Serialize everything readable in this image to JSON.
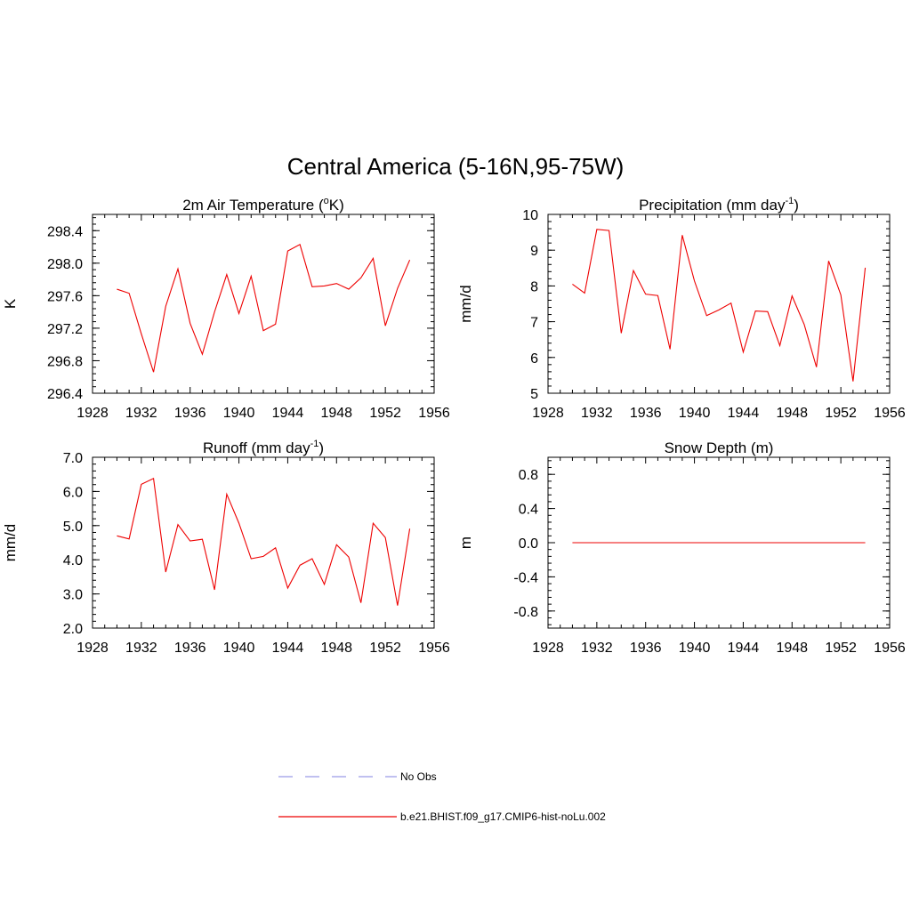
{
  "title": "Central America (5-16N,95-75W)",
  "legend": [
    {
      "label": "No Obs",
      "color": "#9a9ae8",
      "dash": "dashed"
    },
    {
      "label": "b.e21.BHIST.f09_g17.CMIP6-hist-noLu.002",
      "color": "#ee0000",
      "dash": "solid"
    }
  ],
  "chart_data": [
    {
      "id": "temp",
      "type": "line",
      "title_main": "2m Air Temperature (",
      "title_sup": "o",
      "title_after_sup": "K)",
      "ylabel": "K",
      "xlim": [
        1928,
        1956
      ],
      "ylim": [
        296.4,
        298.6
      ],
      "xticks": [
        "1928",
        "1932",
        "1936",
        "1940",
        "1944",
        "1948",
        "1952",
        "1956"
      ],
      "yticks": [
        "296.4",
        "296.8",
        "297.2",
        "297.6",
        "298.0",
        "298.4"
      ],
      "series": [
        {
          "color": "#ee0000",
          "x": [
            1930,
            1931,
            1932,
            1933,
            1934,
            1935,
            1936,
            1937,
            1938,
            1939,
            1940,
            1941,
            1942,
            1943,
            1944,
            1945,
            1946,
            1947,
            1948,
            1949,
            1950,
            1951,
            1952,
            1953,
            1954
          ],
          "values": [
            297.68,
            297.63,
            297.13,
            296.66,
            297.47,
            297.93,
            297.26,
            296.88,
            297.4,
            297.86,
            297.38,
            297.84,
            297.17,
            297.25,
            298.15,
            298.23,
            297.71,
            297.72,
            297.75,
            297.68,
            297.82,
            298.06,
            297.23,
            297.69,
            298.04
          ]
        }
      ]
    },
    {
      "id": "precip",
      "type": "line",
      "title_main": "Precipitation (mm day",
      "title_sup": "-1",
      "title_after_sup": ")",
      "ylabel": "mm/d",
      "xlim": [
        1928,
        1956
      ],
      "ylim": [
        5,
        10
      ],
      "xticks": [
        "1928",
        "1932",
        "1936",
        "1940",
        "1944",
        "1948",
        "1952",
        "1956"
      ],
      "yticks": [
        "5",
        "6",
        "7",
        "8",
        "9",
        "10"
      ],
      "series": [
        {
          "color": "#ee0000",
          "x": [
            1930,
            1931,
            1932,
            1933,
            1934,
            1935,
            1936,
            1937,
            1938,
            1939,
            1940,
            1941,
            1942,
            1943,
            1944,
            1945,
            1946,
            1947,
            1948,
            1949,
            1950,
            1951,
            1952,
            1953,
            1954
          ],
          "values": [
            8.05,
            7.8,
            9.58,
            9.55,
            6.68,
            8.43,
            7.77,
            7.73,
            6.23,
            9.42,
            8.14,
            7.17,
            7.33,
            7.52,
            6.15,
            7.3,
            7.28,
            6.33,
            7.72,
            6.92,
            5.73,
            8.7,
            7.75,
            5.33,
            8.51
          ]
        }
      ]
    },
    {
      "id": "runoff",
      "type": "line",
      "title_main": "Runoff (mm day",
      "title_sup": "-1",
      "title_after_sup": ")",
      "ylabel": "mm/d",
      "xlim": [
        1928,
        1956
      ],
      "ylim": [
        2,
        7
      ],
      "xticks": [
        "1928",
        "1932",
        "1936",
        "1940",
        "1944",
        "1948",
        "1952",
        "1956"
      ],
      "yticks": [
        "2.0",
        "3.0",
        "4.0",
        "5.0",
        "6.0",
        "7.0"
      ],
      "series": [
        {
          "color": "#ee0000",
          "x": [
            1930,
            1931,
            1932,
            1933,
            1934,
            1935,
            1936,
            1937,
            1938,
            1939,
            1940,
            1941,
            1942,
            1943,
            1944,
            1945,
            1946,
            1947,
            1948,
            1949,
            1950,
            1951,
            1952,
            1953,
            1954
          ],
          "values": [
            4.7,
            4.61,
            6.21,
            6.38,
            3.64,
            5.03,
            4.55,
            4.6,
            3.12,
            5.92,
            5.07,
            4.03,
            4.1,
            4.35,
            3.17,
            3.84,
            4.03,
            3.28,
            4.44,
            4.08,
            2.74,
            5.07,
            4.65,
            2.66,
            4.91
          ]
        }
      ]
    },
    {
      "id": "snow",
      "type": "line",
      "title_main": "Snow Depth (m)",
      "title_sup": "",
      "title_after_sup": "",
      "ylabel": "m",
      "xlim": [
        1928,
        1956
      ],
      "ylim": [
        -1.0,
        1.0
      ],
      "xticks": [
        "1928",
        "1932",
        "1936",
        "1940",
        "1944",
        "1948",
        "1952",
        "1956"
      ],
      "yticks": [
        "-0.8",
        "-0.4",
        "0.0",
        "0.4",
        "0.8"
      ],
      "series": [
        {
          "color": "#ee0000",
          "x": [
            1930,
            1931,
            1932,
            1933,
            1934,
            1935,
            1936,
            1937,
            1938,
            1939,
            1940,
            1941,
            1942,
            1943,
            1944,
            1945,
            1946,
            1947,
            1948,
            1949,
            1950,
            1951,
            1952,
            1953,
            1954
          ],
          "values": [
            0,
            0,
            0,
            0,
            0,
            0,
            0,
            0,
            0,
            0,
            0,
            0,
            0,
            0,
            0,
            0,
            0,
            0,
            0,
            0,
            0,
            0,
            0,
            0,
            0
          ]
        }
      ]
    }
  ]
}
